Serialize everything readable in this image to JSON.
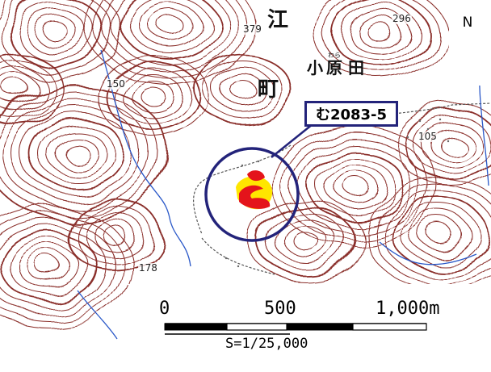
{
  "map": {
    "elevations": {
      "e379": "379",
      "e296": "296",
      "e150": "150",
      "e105": "105",
      "e178": "178"
    },
    "place_names": {
      "ko": "小",
      "hara": "原",
      "ta": "田",
      "e": "江",
      "machi": "町",
      "furigana": "わら"
    },
    "north_label": "N",
    "site_label": "む2083-5",
    "scale": {
      "zero": "0",
      "mid": "500",
      "end": "1,000m",
      "ratio": "S=1/25,000"
    },
    "colors": {
      "contour": "#8a2f2a",
      "stream": "#2a58c8",
      "site_red": "#e4141b",
      "site_yellow": "#ffe600",
      "marker": "#23237a"
    }
  }
}
